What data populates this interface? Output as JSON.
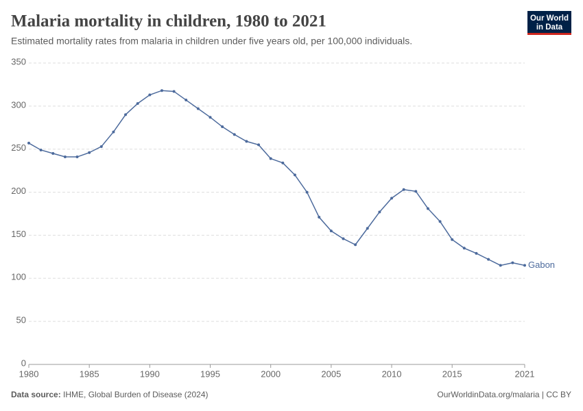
{
  "chart_data": {
    "type": "line",
    "title": "Malaria mortality in children, 1980 to 2021",
    "subtitle": "Estimated mortality rates from malaria in children under five years old, per 100,000 individuals.",
    "x": [
      1980,
      1981,
      1982,
      1983,
      1984,
      1985,
      1986,
      1987,
      1988,
      1989,
      1990,
      1991,
      1992,
      1993,
      1994,
      1995,
      1996,
      1997,
      1998,
      1999,
      2000,
      2001,
      2002,
      2003,
      2004,
      2005,
      2006,
      2007,
      2008,
      2009,
      2010,
      2011,
      2012,
      2013,
      2014,
      2015,
      2016,
      2017,
      2018,
      2019,
      2020,
      2021
    ],
    "series": [
      {
        "name": "Gabon",
        "color": "#4c6a9c",
        "values": [
          257,
          249,
          245,
          241,
          241,
          246,
          253,
          270,
          290,
          303,
          313,
          318,
          317,
          307,
          297,
          287,
          276,
          267,
          259,
          255,
          239,
          234,
          220,
          200,
          171,
          155,
          146,
          139,
          158,
          177,
          193,
          203,
          201,
          181,
          166,
          145,
          135,
          129,
          122,
          115,
          118,
          115
        ]
      }
    ],
    "xlim": [
      1980,
      2021
    ],
    "xticks": [
      1980,
      1985,
      1990,
      1995,
      2000,
      2005,
      2010,
      2015,
      2021
    ],
    "ylim": [
      0,
      350
    ],
    "yticks": [
      0,
      50,
      100,
      150,
      200,
      250,
      300,
      350
    ],
    "grid": true
  },
  "logo": [
    "Our World",
    "in Data"
  ],
  "footer": {
    "source_label": "Data source:",
    "source": "IHME, Global Burden of Disease (2024)",
    "url": "OurWorldinData.org/malaria | CC BY"
  }
}
